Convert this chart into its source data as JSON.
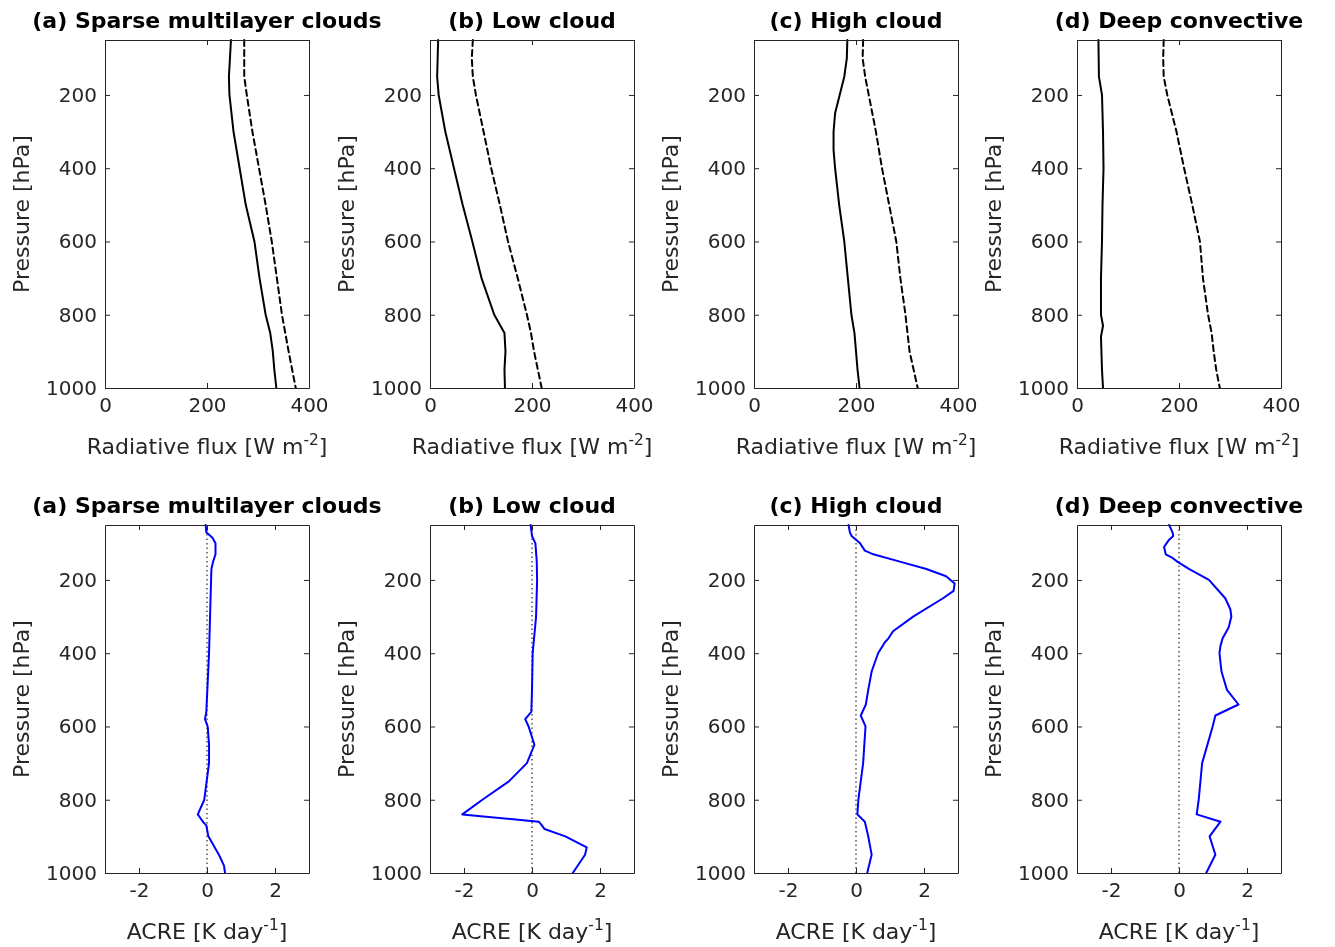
{
  "chart_data": [
    {
      "type": "line",
      "title": "(a) Sparse multilayer clouds",
      "xlabel": "Radiative flux [W m$^{-2}$]",
      "ylabel": "Pressure [hPa]",
      "xlim": [
        0,
        400
      ],
      "xticks": [
        0,
        200,
        400
      ],
      "ylim": [
        1000,
        50
      ],
      "yticks": [
        200,
        400,
        600,
        800,
        1000
      ],
      "series": [
        {
          "color": "#000000",
          "line_style": "solid",
          "x": [
            247,
            245,
            243,
            244,
            252,
            264,
            276,
            293,
            303,
            315,
            324,
            329,
            332,
            336
          ],
          "values": [
            50,
            100,
            150,
            200,
            300,
            400,
            500,
            600,
            700,
            800,
            850,
            900,
            950,
            1000
          ]
        },
        {
          "color": "#000000",
          "line_style": "dashed",
          "x": [
            273,
            273,
            273,
            278,
            289,
            302,
            315,
            327,
            337,
            347,
            360,
            367,
            374
          ],
          "values": [
            50,
            100,
            150,
            200,
            300,
            400,
            500,
            600,
            700,
            800,
            900,
            950,
            1000
          ]
        }
      ]
    },
    {
      "type": "line",
      "title": "(b) Low cloud",
      "xlabel": "Radiative flux [W m$^{-2}$]",
      "ylabel": "Pressure [hPa]",
      "xlim": [
        0,
        400
      ],
      "xticks": [
        0,
        200,
        400
      ],
      "ylim": [
        1000,
        50
      ],
      "yticks": [
        200,
        400,
        600,
        800,
        1000
      ],
      "series": [
        {
          "color": "#000000",
          "line_style": "solid",
          "x": [
            16,
            15,
            14,
            17,
            30,
            47,
            64,
            83,
            101,
            126,
            146,
            148,
            146,
            147
          ],
          "values": [
            50,
            100,
            150,
            200,
            300,
            400,
            500,
            600,
            700,
            800,
            850,
            900,
            950,
            1000
          ]
        },
        {
          "color": "#000000",
          "line_style": "dashed",
          "x": [
            84,
            82,
            84,
            90,
            105,
            120,
            137,
            153,
            172,
            190,
            198,
            204,
            219
          ],
          "values": [
            50,
            100,
            150,
            200,
            300,
            400,
            500,
            600,
            700,
            800,
            850,
            900,
            1000
          ]
        }
      ]
    },
    {
      "type": "line",
      "title": "(c) High cloud",
      "xlabel": "Radiative flux [W m$^{-2}$]",
      "ylabel": "Pressure [hPa]",
      "xlim": [
        0,
        400
      ],
      "xticks": [
        0,
        200,
        400
      ],
      "ylim": [
        1000,
        50
      ],
      "yticks": [
        200,
        400,
        600,
        800,
        1000
      ],
      "series": [
        {
          "color": "#000000",
          "line_style": "solid",
          "x": [
            183,
            182,
            177,
            168,
            159,
            156,
            156,
            159,
            167,
            177,
            184,
            191,
            197,
            200,
            203,
            207
          ],
          "values": [
            50,
            100,
            150,
            200,
            250,
            300,
            350,
            400,
            500,
            600,
            700,
            800,
            850,
            900,
            950,
            1000
          ]
        },
        {
          "color": "#000000",
          "line_style": "dashed",
          "x": [
            214,
            213,
            218,
            225,
            239,
            251,
            265,
            279,
            287,
            297,
            305,
            321
          ],
          "values": [
            50,
            100,
            150,
            200,
            300,
            400,
            500,
            600,
            700,
            800,
            900,
            1000
          ]
        }
      ]
    },
    {
      "type": "line",
      "title": "(d) Deep convective",
      "xlabel": "Radiative flux [W m$^{-2}$]",
      "ylabel": "Pressure [hPa]",
      "xlim": [
        0,
        400
      ],
      "xticks": [
        0,
        200,
        400
      ],
      "ylim": [
        1000,
        50
      ],
      "yticks": [
        200,
        400,
        600,
        800,
        1000
      ],
      "series": [
        {
          "color": "#000000",
          "line_style": "solid",
          "x": [
            42,
            43,
            49,
            51,
            52,
            50,
            49,
            47,
            47,
            51,
            47,
            49,
            51
          ],
          "values": [
            50,
            150,
            200,
            300,
            400,
            500,
            600,
            700,
            800,
            830,
            860,
            950,
            1000
          ]
        },
        {
          "color": "#000000",
          "line_style": "dashed",
          "x": [
            170,
            169,
            170,
            177,
            195,
            210,
            226,
            241,
            247,
            257,
            264,
            268,
            273,
            280
          ],
          "values": [
            50,
            100,
            150,
            200,
            300,
            400,
            500,
            600,
            700,
            800,
            850,
            900,
            950,
            1000
          ]
        }
      ]
    },
    {
      "type": "line",
      "title": "(a) Sparse multilayer clouds",
      "xlabel": "ACRE [K day$^{-1}$]",
      "ylabel": "Pressure [hPa]",
      "xlim": [
        -3,
        3
      ],
      "xticks": [
        -2,
        0,
        2
      ],
      "ylim": [
        1000,
        50
      ],
      "yticks": [
        200,
        400,
        600,
        800,
        1000
      ],
      "ref_lines": [
        {
          "axis": "x",
          "value": 0,
          "color": "#000000",
          "line_style": "dotted"
        }
      ],
      "series": [
        {
          "color": "#0000ff",
          "line_style": "solid",
          "x": [
            -0.04,
            -0.02,
            0.16,
            0.25,
            0.25,
            0.18,
            0.13,
            0.12,
            0.09,
            0.06,
            0.01,
            -0.02,
            -0.06,
            0.02,
            0.06,
            0.06,
            -0.01,
            -0.08,
            -0.27,
            -0.12,
            -0.02,
            0.04,
            0.35,
            0.5,
            0.53
          ],
          "values": [
            50,
            70,
            85,
            100,
            130,
            150,
            170,
            200,
            300,
            400,
            500,
            560,
            580,
            600,
            650,
            700,
            750,
            800,
            840,
            860,
            870,
            900,
            950,
            980,
            1000
          ]
        }
      ]
    },
    {
      "type": "line",
      "title": "(b) Low cloud",
      "xlabel": "ACRE [K day$^{-1}$]",
      "ylabel": "Pressure [hPa]",
      "xlim": [
        -3,
        3
      ],
      "xticks": [
        -2,
        0,
        2
      ],
      "ylim": [
        1000,
        50
      ],
      "yticks": [
        200,
        400,
        600,
        800,
        1000
      ],
      "ref_lines": [
        {
          "axis": "x",
          "value": 0,
          "color": "#000000",
          "line_style": "dotted"
        }
      ],
      "series": [
        {
          "color": "#0000ff",
          "line_style": "solid",
          "x": [
            -0.04,
            0,
            0.1,
            0.14,
            0.15,
            0.12,
            0.02,
            0,
            -0.02,
            -0.2,
            -0.1,
            0.07,
            -0.15,
            -0.68,
            -1.46,
            -2.05,
            0.2,
            0.29,
            0.37,
            0.98,
            1.61,
            1.56,
            1.2
          ],
          "values": [
            50,
            80,
            100,
            150,
            200,
            300,
            400,
            500,
            560,
            580,
            600,
            650,
            700,
            750,
            800,
            840,
            860,
            870,
            880,
            900,
            930,
            950,
            1000
          ]
        }
      ]
    },
    {
      "type": "line",
      "title": "(c) High cloud",
      "xlabel": "ACRE [K day$^{-1}$]",
      "ylabel": "Pressure [hPa]",
      "xlim": [
        -3,
        3
      ],
      "xticks": [
        -2,
        0,
        2
      ],
      "ylim": [
        1000,
        50
      ],
      "yticks": [
        200,
        400,
        600,
        800,
        1000
      ],
      "ref_lines": [
        {
          "axis": "x",
          "value": 0,
          "color": "#000000",
          "line_style": "dotted"
        }
      ],
      "series": [
        {
          "color": "#0000ff",
          "line_style": "solid",
          "x": [
            -0.22,
            -0.18,
            -0.13,
            0,
            0.12,
            0.26,
            0.51,
            1.29,
            2.07,
            2.65,
            2.9,
            2.87,
            2.56,
            1.68,
            1.09,
            0.95,
            0.85,
            0.65,
            0.46,
            0.36,
            0.29,
            0.14,
            0.28,
            0.21,
            0.07,
            0.04,
            0.26,
            0.36,
            0.46,
            0.33
          ],
          "values": [
            50,
            70,
            80,
            90,
            100,
            120,
            130,
            150,
            170,
            190,
            210,
            230,
            250,
            300,
            340,
            360,
            370,
            400,
            450,
            500,
            540,
            570,
            600,
            700,
            800,
            840,
            860,
            900,
            950,
            1000
          ]
        }
      ]
    },
    {
      "type": "line",
      "title": "(d) Deep convective",
      "xlabel": "ACRE [K day$^{-1}$]",
      "ylabel": "Pressure [hPa]",
      "xlim": [
        -3,
        3
      ],
      "xticks": [
        -2,
        0,
        2
      ],
      "ylim": [
        1000,
        50
      ],
      "yticks": [
        200,
        400,
        600,
        800,
        1000
      ],
      "ref_lines": [
        {
          "axis": "x",
          "value": 0,
          "color": "#000000",
          "line_style": "dotted"
        }
      ],
      "series": [
        {
          "color": "#0000ff",
          "line_style": "solid",
          "x": [
            -0.29,
            -0.24,
            -0.19,
            -0.17,
            -0.29,
            -0.44,
            -0.39,
            -0.19,
            -0.05,
            0.29,
            0.88,
            1.36,
            1.51,
            1.54,
            1.46,
            1.28,
            1.22,
            1.19,
            1.25,
            1.41,
            1.75,
            1.07,
            0.99,
            0.68,
            0.58,
            0.52,
            1.22,
            0.9,
            1.07,
            0.8
          ],
          "values": [
            50,
            60,
            70,
            80,
            90,
            110,
            130,
            140,
            150,
            170,
            200,
            250,
            280,
            300,
            330,
            360,
            380,
            400,
            450,
            500,
            540,
            570,
            600,
            700,
            800,
            840,
            860,
            900,
            950,
            1000
          ]
        }
      ]
    }
  ]
}
